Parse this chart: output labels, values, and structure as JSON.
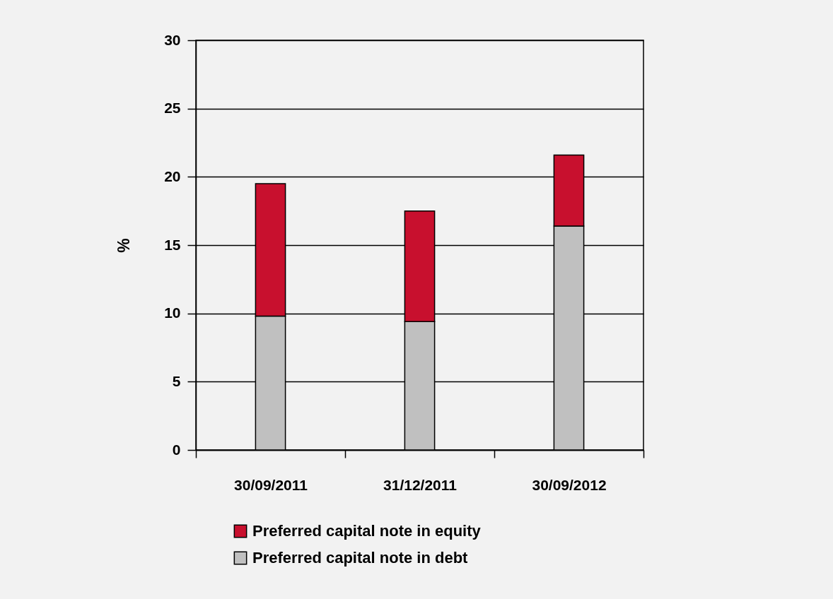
{
  "chart_data": {
    "type": "bar",
    "stacked": true,
    "ylabel": "%",
    "categories": [
      "30/09/2011",
      "31/12/2011",
      "30/09/2012"
    ],
    "series": [
      {
        "name": "Preferred capital note in debt",
        "color": "#c0c0c0",
        "values": [
          9.8,
          9.4,
          16.4
        ]
      },
      {
        "name": "Preferred capital note in equity",
        "color": "#c8102e",
        "values": [
          9.7,
          8.1,
          5.2
        ]
      }
    ],
    "ylim": [
      0,
      30
    ],
    "yticks": [
      0,
      5,
      10,
      15,
      20,
      25,
      30
    ],
    "grid": "y",
    "legend": "bottom"
  }
}
